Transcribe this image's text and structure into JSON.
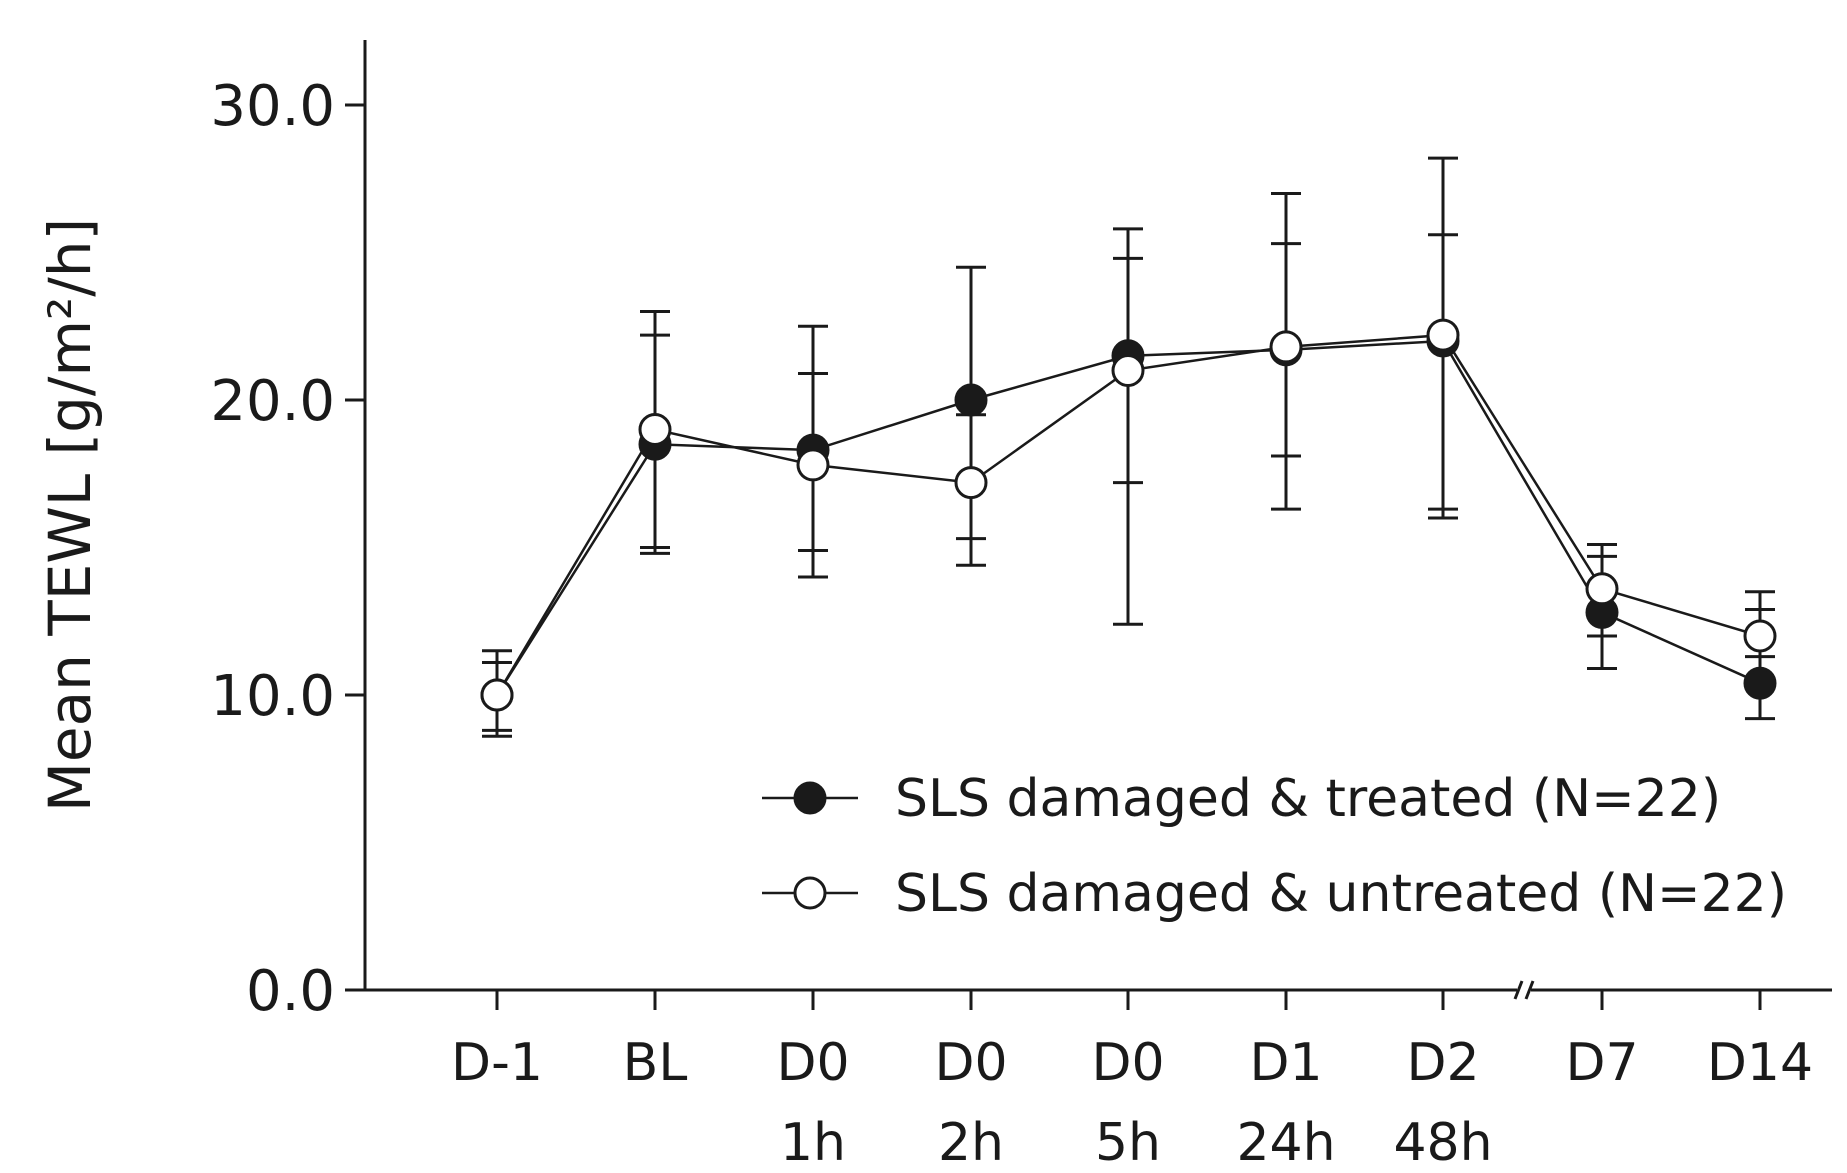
{
  "chart_data": {
    "type": "line",
    "title": "",
    "xlabel": "",
    "ylabel": "Mean TEWL [g/m²/h]",
    "ylim": [
      0,
      30
    ],
    "y_ticks": [
      "0.0",
      "10.0",
      "20.0",
      "30.0"
    ],
    "y_tick_values": [
      0,
      10,
      20,
      30
    ],
    "categories": [
      [
        "D-1",
        ""
      ],
      [
        "BL",
        ""
      ],
      [
        "D0",
        "1h"
      ],
      [
        "D0",
        "2h"
      ],
      [
        "D0",
        "5h"
      ],
      [
        "D1",
        "24h"
      ],
      [
        "D2",
        "48h"
      ],
      [
        "D7",
        ""
      ],
      [
        "D14",
        ""
      ]
    ],
    "axis_break_after_index": 6,
    "axis_break_label": "//",
    "grid": false,
    "legend_position": "bottom-right",
    "series": [
      {
        "name": "SLS damaged & treated (N=22)",
        "marker": "filled-circle",
        "color": "#1a1a1a",
        "values": [
          10.0,
          18.5,
          18.3,
          20.0,
          21.5,
          21.7,
          22.0,
          12.8,
          10.4
        ],
        "err_low": [
          8.8,
          14.8,
          14.0,
          14.4,
          12.4,
          16.3,
          16.0,
          10.9,
          9.2
        ],
        "err_high": [
          11.1,
          22.2,
          22.5,
          24.5,
          25.8,
          27.0,
          28.2,
          14.7,
          13.5
        ]
      },
      {
        "name": "SLS damaged & untreated (N=22)",
        "marker": "open-circle",
        "color": "#ffffff",
        "values": [
          10.0,
          19.0,
          17.8,
          17.2,
          21.0,
          21.8,
          22.2,
          13.6,
          12.0
        ],
        "err_low": [
          8.6,
          15.0,
          14.9,
          15.3,
          17.2,
          18.1,
          16.3,
          12.0,
          11.3
        ],
        "err_high": [
          11.5,
          23.0,
          20.9,
          19.5,
          24.8,
          25.3,
          25.6,
          15.1,
          12.9
        ]
      }
    ]
  }
}
